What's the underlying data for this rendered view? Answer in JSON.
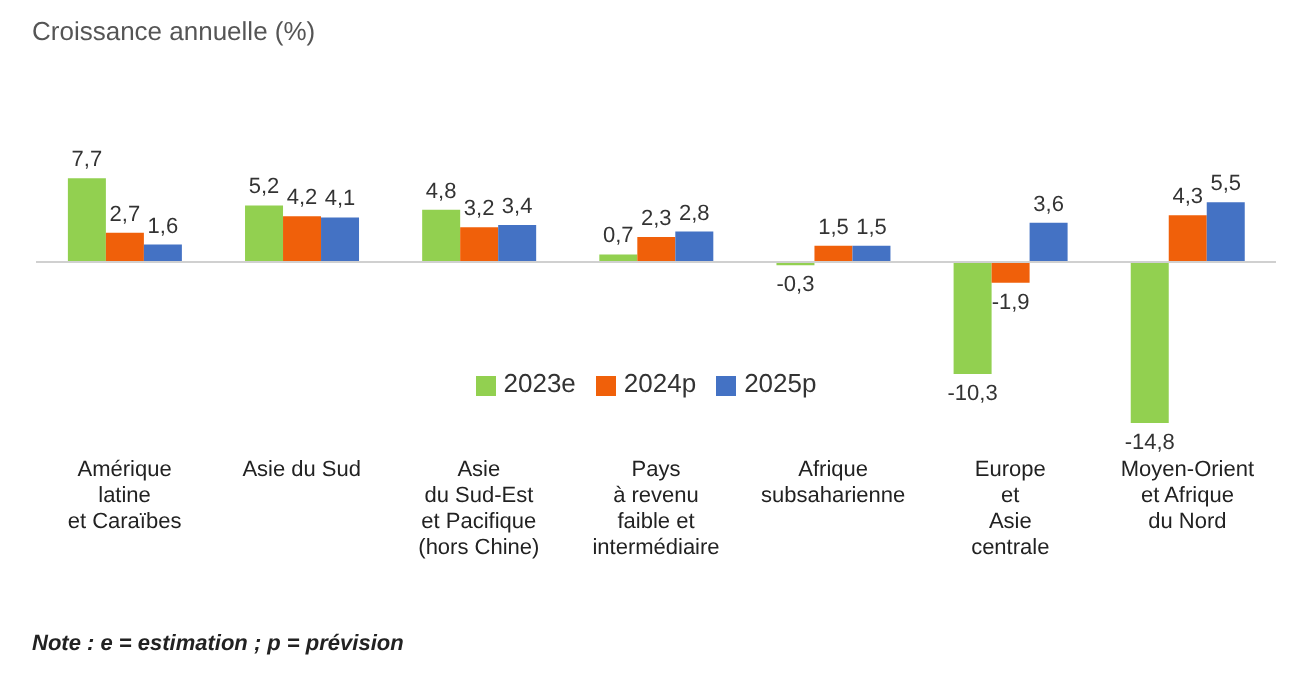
{
  "chart_data": {
    "type": "bar",
    "title": "Croissance annuelle (%)",
    "categories": [
      "Amérique\nlatine\net Caraïbes",
      "Asie du Sud",
      "Asie\ndu Sud-Est\net Pacifique\n(hors Chine)",
      "Pays\nà revenu\nfaible et\nintermédiaire",
      "Afrique\nsubsaharienne",
      "Europe\net\nAsie\ncentrale",
      "Moyen-Orient\net Afrique\ndu Nord"
    ],
    "series": [
      {
        "name": "2023e",
        "color": "#92d050",
        "values": [
          7.7,
          5.2,
          4.8,
          0.7,
          -0.3,
          -10.3,
          -14.8
        ],
        "value_labels": [
          "7,7",
          "5,2",
          "4,8",
          "0,7",
          "-0,3",
          "-10,3",
          "-14,8"
        ]
      },
      {
        "name": "2024p",
        "color": "#f0600a",
        "values": [
          2.7,
          4.2,
          3.2,
          2.3,
          1.5,
          -1.9,
          4.3
        ],
        "value_labels": [
          "2,7",
          "4,2",
          "3,2",
          "2,3",
          "1,5",
          "-1,9",
          "4,3"
        ]
      },
      {
        "name": "2025p",
        "color": "#4472c4",
        "values": [
          1.6,
          4.1,
          3.4,
          2.8,
          1.5,
          3.6,
          5.5
        ],
        "value_labels": [
          "1,6",
          "4,1",
          "3,4",
          "2,8",
          "1,5",
          "3,6",
          "5,5"
        ]
      }
    ],
    "tick_labels": "x",
    "legend": "center",
    "annotations": [
      "Note : e = estimation ; p = prévision"
    ]
  }
}
